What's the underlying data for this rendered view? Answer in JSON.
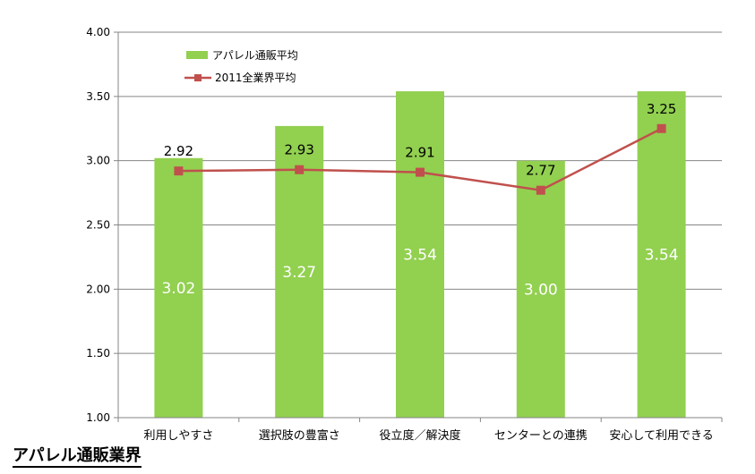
{
  "caption": "アパレル通販業界",
  "chart_data": {
    "type": "bar",
    "categories": [
      "利用しやすさ",
      "選択肢の豊富さ",
      "役立度／解決度",
      "センターとの連携",
      "安心して利用できる"
    ],
    "series": [
      {
        "name": "アパレル通販平均",
        "type": "bar",
        "values": [
          3.02,
          3.27,
          3.54,
          3.0,
          3.54
        ],
        "labels": [
          "3.02",
          "3.27",
          "3.54",
          "3.00",
          "3.54"
        ],
        "color": "#92d050"
      },
      {
        "name": "2011全業界平均",
        "type": "line",
        "values": [
          2.92,
          2.93,
          2.91,
          2.77,
          3.25
        ],
        "labels": [
          "2.92",
          "2.93",
          "2.91",
          "2.77",
          "3.25"
        ],
        "color": "#c0504d"
      }
    ],
    "ylim": [
      1.0,
      4.0
    ],
    "yticks": [
      "1.00",
      "1.50",
      "2.00",
      "2.50",
      "3.00",
      "3.50",
      "4.00"
    ],
    "grid": true,
    "legend_position": "top-left"
  }
}
